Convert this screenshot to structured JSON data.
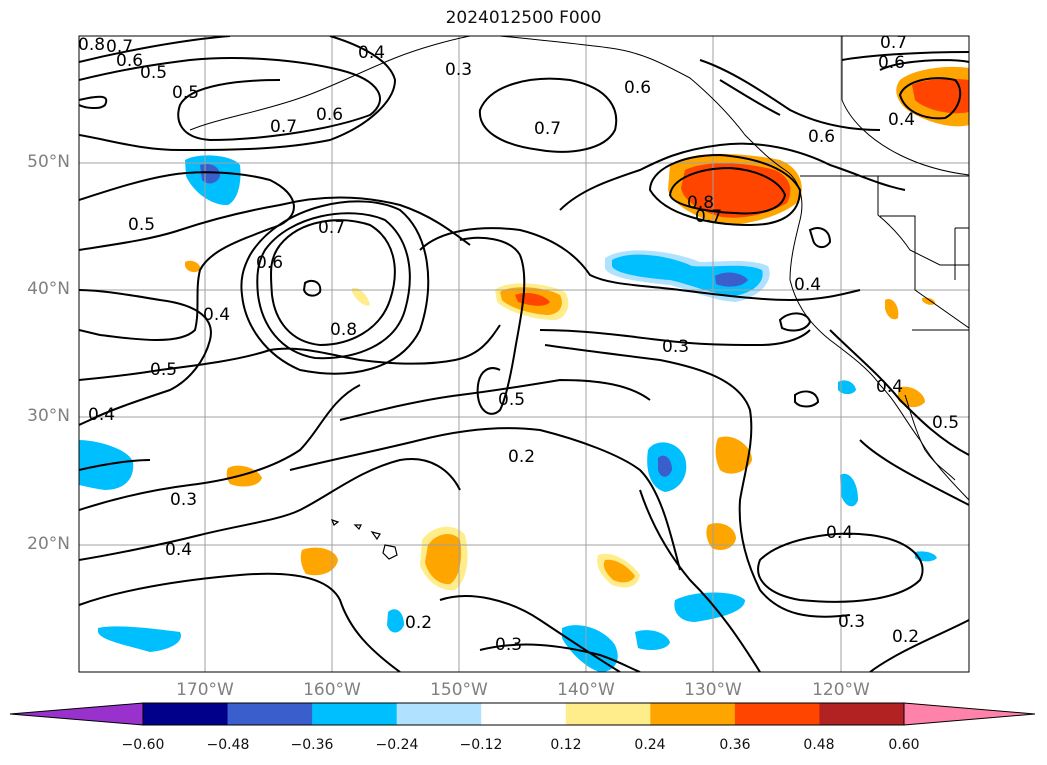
{
  "title": "2024012500 F000",
  "map": {
    "region": "North Pacific / Western North America",
    "lon_range": [
      -180,
      -110
    ],
    "lat_range": [
      10,
      60
    ],
    "lat_labels": [
      "50°N",
      "40°N",
      "30°N",
      "20°N"
    ],
    "lon_labels": [
      "170°W",
      "160°W",
      "150°W",
      "140°W",
      "130°W",
      "120°W"
    ],
    "contour_color": "#000000",
    "grid_color": "#a0a0a0",
    "contour_labels": [
      "0.8",
      "0.7",
      "0.6",
      "0.5",
      "0.5",
      "0.4",
      "0.3",
      "0.7",
      "0.6",
      "0.6",
      "0.7",
      "0.6",
      "0.5",
      "0.7",
      "0.6",
      "0.4",
      "0.8",
      "0.8",
      "0.7",
      "0.6",
      "0.4",
      "0.4",
      "0.5",
      "0.4",
      "0.3",
      "0.5",
      "0.2",
      "0.3",
      "0.4",
      "0.4",
      "0.3",
      "0.2",
      "0.2",
      "0.3",
      "0.5",
      "0.4",
      "0.7",
      "0.6"
    ]
  },
  "colorbar": {
    "ticks": [
      "−0.60",
      "−0.48",
      "−0.36",
      "−0.24",
      "−0.12",
      "0.12",
      "0.24",
      "0.36",
      "0.48",
      "0.60"
    ],
    "colors": [
      "#9932cc",
      "#00008b",
      "#3a5fcd",
      "#00bfff",
      "#b0e2ff",
      "#ffffff",
      "#ffec8b",
      "#ffa500",
      "#ff4500",
      "#b22222",
      "#ff82ab"
    ]
  }
}
